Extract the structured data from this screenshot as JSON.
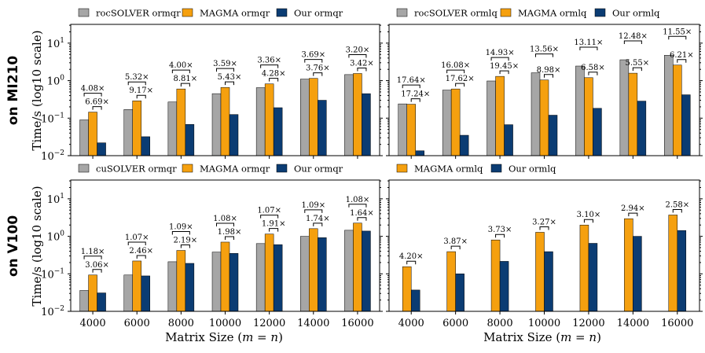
{
  "colors": {
    "rocsolver": "#a6a6a6",
    "magma": "#f5a00f",
    "ours": "#0b3c73"
  },
  "row_labels": [
    "on MI210",
    "on V100"
  ],
  "xlabel_prefix": "Matrix Size (",
  "xlabel_math": "m = n",
  "xlabel_suffix": ")",
  "ylabel": "Time/s (log10 scale)",
  "chart_data": [
    {
      "type": "bar",
      "title": "",
      "categories": [
        "4000",
        "6000",
        "8000",
        "10000",
        "12000",
        "14000",
        "16000"
      ],
      "ylim_log10": [
        -2,
        1.5
      ],
      "yscale": "log",
      "ytick_exponents": [
        -2,
        -1,
        0,
        1
      ],
      "series": [
        {
          "name": "rocSOLVER ormqr",
          "color_key": "rocsolver",
          "values": [
            0.09,
            0.17,
            0.27,
            0.45,
            0.65,
            1.1,
            1.45
          ]
        },
        {
          "name": "MAGMA ormqr",
          "color_key": "magma",
          "values": [
            0.145,
            0.29,
            0.6,
            0.66,
            0.82,
            1.15,
            1.55
          ]
        },
        {
          "name": "Our ormqr",
          "color_key": "ours",
          "values": [
            0.022,
            0.032,
            0.068,
            0.125,
            0.19,
            0.3,
            0.45
          ]
        }
      ],
      "annotations": {
        "upper": [
          "4.08×",
          "5.32×",
          "4.00×",
          "3.59×",
          "3.36×",
          "3.69×",
          "3.20×"
        ],
        "lower": [
          "6.69×",
          "9.17×",
          "8.81×",
          "5.43×",
          "4.28×",
          "3.76×",
          "3.42×"
        ]
      }
    },
    {
      "type": "bar",
      "title": "",
      "categories": [
        "4000",
        "6000",
        "8000",
        "10000",
        "12000",
        "14000",
        "16000"
      ],
      "ylim_log10": [
        -2,
        1.5
      ],
      "yscale": "log",
      "ytick_exponents": [
        -2,
        -1,
        0,
        1
      ],
      "series": [
        {
          "name": "rocSOLVER ormlq",
          "color_key": "rocsolver",
          "values": [
            0.24,
            0.56,
            0.98,
            1.62,
            2.45,
            3.6,
            4.75
          ]
        },
        {
          "name": "MAGMA ormlq",
          "color_key": "magma",
          "values": [
            0.235,
            0.6,
            1.3,
            1.04,
            1.2,
            1.58,
            2.6
          ]
        },
        {
          "name": "Our ormlq",
          "color_key": "ours",
          "values": [
            0.0135,
            0.035,
            0.067,
            0.12,
            0.183,
            0.285,
            0.42
          ]
        }
      ],
      "annotations": {
        "upper": [
          "17.64×",
          "16.08×",
          "14.93×",
          "13.56×",
          "13.11×",
          "12.48×",
          "11.55×"
        ],
        "lower": [
          "17.24×",
          "17.62×",
          "19.45×",
          "8.98×",
          "6.58×",
          "5.55×",
          "6.21×"
        ]
      }
    },
    {
      "type": "bar",
      "title": "",
      "categories": [
        "4000",
        "6000",
        "8000",
        "10000",
        "12000",
        "14000",
        "16000"
      ],
      "ylim_log10": [
        -2,
        1.5
      ],
      "yscale": "log",
      "ytick_exponents": [
        -2,
        -1,
        0,
        1
      ],
      "series": [
        {
          "name": "cuSOLVER ormqr",
          "color_key": "rocsolver",
          "values": [
            0.036,
            0.093,
            0.21,
            0.38,
            0.64,
            1.0,
            1.45
          ]
        },
        {
          "name": "MAGMA ormqr",
          "color_key": "magma",
          "values": [
            0.093,
            0.22,
            0.42,
            0.7,
            1.15,
            1.6,
            2.25
          ]
        },
        {
          "name": "Our ormqr",
          "color_key": "ours",
          "values": [
            0.031,
            0.088,
            0.19,
            0.35,
            0.6,
            0.92,
            1.38
          ]
        }
      ],
      "annotations": {
        "upper": [
          "1.18×",
          "1.07×",
          "1.09×",
          "1.08×",
          "1.07×",
          "1.09×",
          "1.08×"
        ],
        "lower": [
          "3.06×",
          "2.46×",
          "2.19×",
          "1.98×",
          "1.91×",
          "1.74×",
          "1.64×"
        ]
      }
    },
    {
      "type": "bar",
      "title": "",
      "categories": [
        "4000",
        "6000",
        "8000",
        "10000",
        "12000",
        "14000",
        "16000"
      ],
      "ylim_log10": [
        -2,
        1.5
      ],
      "yscale": "log",
      "ytick_exponents": [
        -2,
        -1,
        0,
        1
      ],
      "series": [
        {
          "name": "MAGMA ormlq",
          "color_key": "magma",
          "values": [
            0.155,
            0.39,
            0.8,
            1.28,
            2.0,
            2.95,
            3.7
          ]
        },
        {
          "name": "Our ormlq",
          "color_key": "ours",
          "values": [
            0.037,
            0.1,
            0.215,
            0.39,
            0.65,
            1.0,
            1.43
          ]
        }
      ],
      "annotations": {
        "upper": [
          "4.20×",
          "3.87×",
          "3.73×",
          "3.27×",
          "3.10×",
          "2.94×",
          "2.58×"
        ],
        "lower": []
      }
    }
  ]
}
